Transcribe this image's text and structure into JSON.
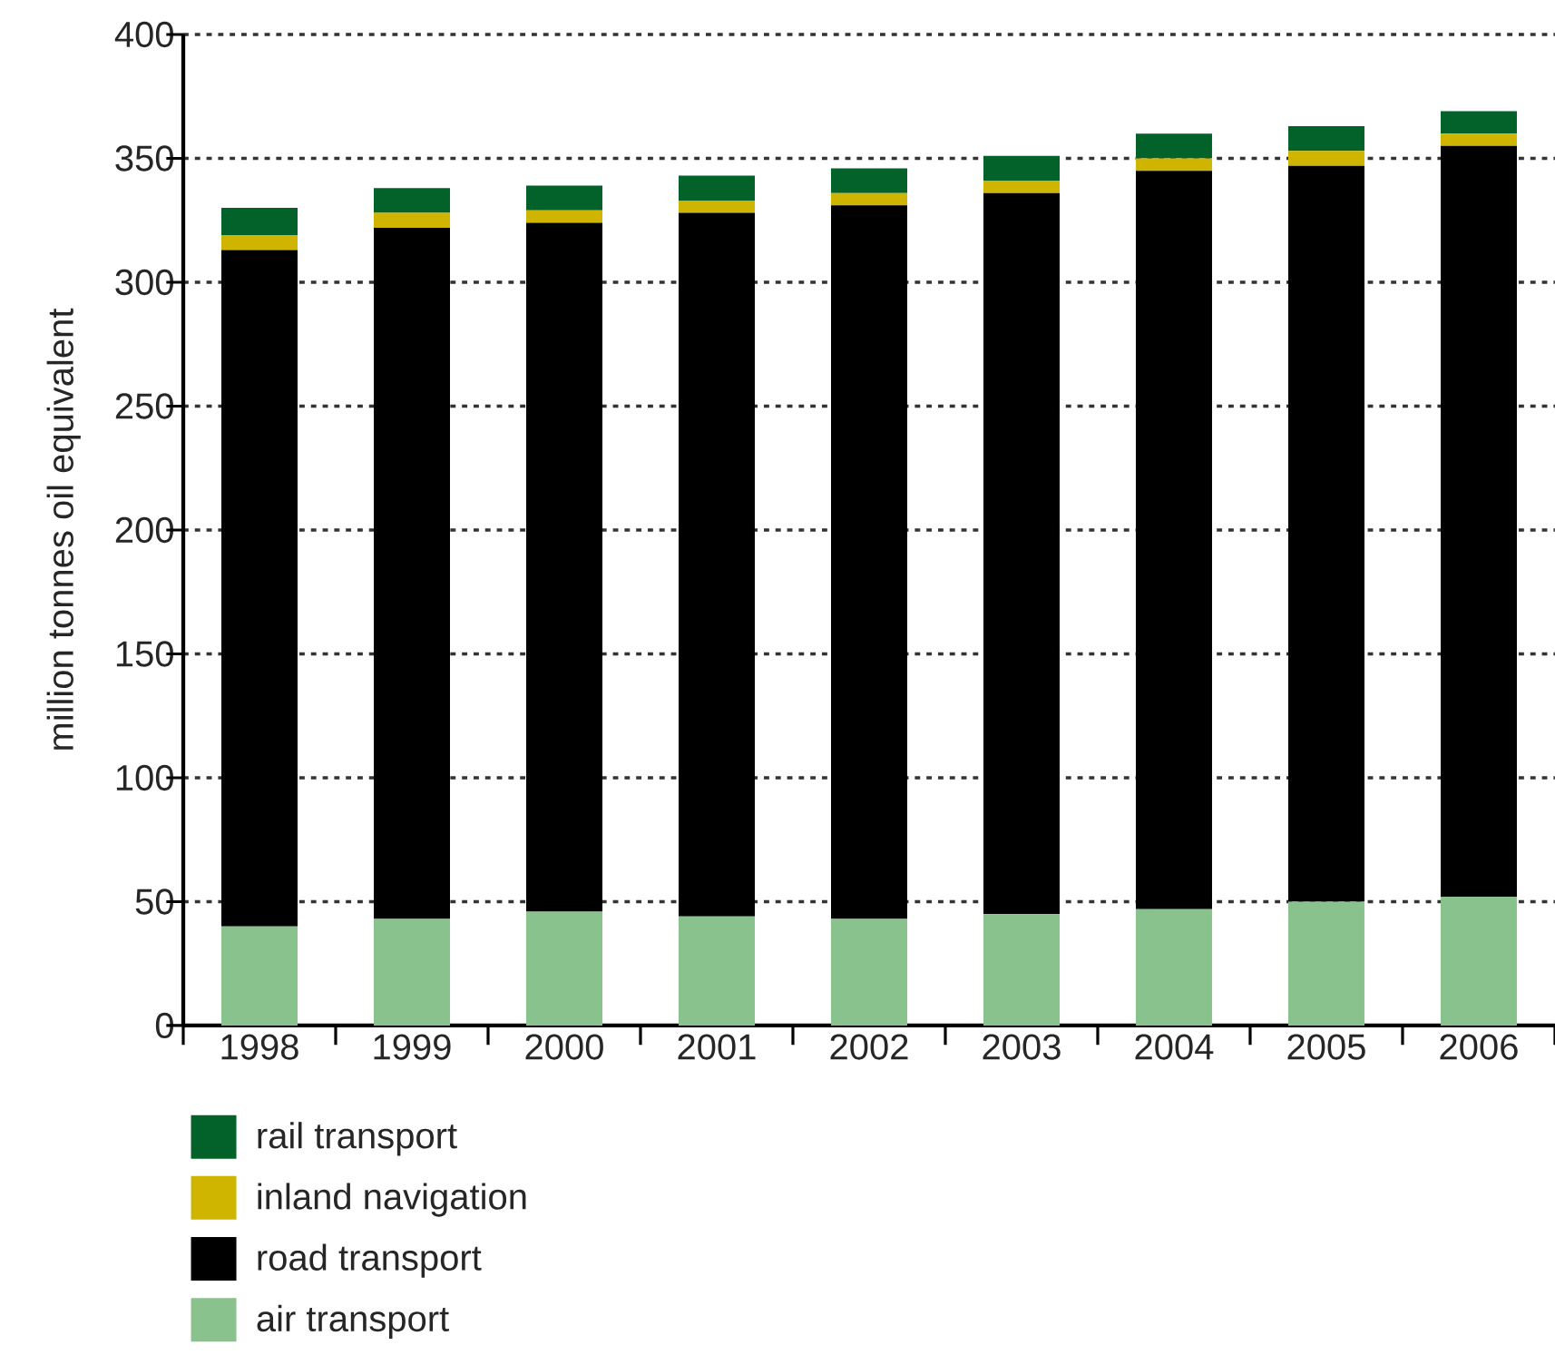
{
  "chart_data": {
    "type": "bar",
    "stacked": true,
    "ylabel": "million tonnes oil equivalent",
    "categories": [
      "1998",
      "1999",
      "2000",
      "2001",
      "2002",
      "2003",
      "2004",
      "2005",
      "2006"
    ],
    "series": [
      {
        "name": "air transport",
        "color": "#8ac28e",
        "values": [
          40,
          43,
          46,
          44,
          43,
          45,
          47,
          50,
          52
        ]
      },
      {
        "name": "road transport",
        "color": "#000000",
        "values": [
          273,
          279,
          278,
          284,
          288,
          291,
          298,
          297,
          303
        ]
      },
      {
        "name": "inland navigation",
        "color": "#d0b500",
        "values": [
          6,
          6,
          5,
          5,
          5,
          5,
          5,
          6,
          5
        ]
      },
      {
        "name": "rail transport",
        "color": "#036229",
        "values": [
          11,
          10,
          10,
          10,
          10,
          10,
          10,
          10,
          9
        ]
      }
    ],
    "ylim": [
      0,
      400
    ],
    "yticks": [
      0,
      50,
      100,
      150,
      200,
      250,
      300,
      350,
      400
    ],
    "grid": "y",
    "legend": "bottom left"
  }
}
